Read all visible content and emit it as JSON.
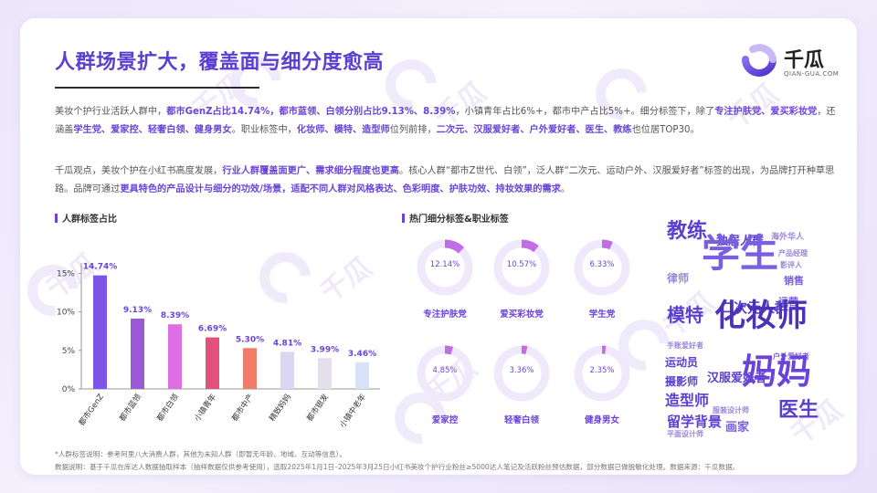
{
  "title": "人群场景扩大，覆盖面与细分度愈高",
  "logo": {
    "name": "千瓜",
    "sub": "QIAN-GUA.COM",
    "watermark_sub": "QIAN-GUA.COM"
  },
  "paragraph1": {
    "t1": "美妆个护行业活跃人群中，",
    "h1": "都市GenZ占比14.74%，都市蓝领、白领分别占比9.13%、8.39%",
    "t2": "，小镇青年占比6%+，都市中产占比5%+。细分标签下，除了",
    "h2": "专注护肤党、爱买彩妆党",
    "t3": "，还涵盖",
    "h3": "学生党、爱家控、轻奢白领、健身男女",
    "t4": "。职业标签中，",
    "h4": "化妆师、模特、造型师",
    "t5": "位列前排，",
    "h5": "二次元、汉服爱好者、户外爱好者、医生、教练",
    "t6": "也位居TOP30。"
  },
  "paragraph2": {
    "t1": "千瓜观点，美妆个护在小红书高度发展，",
    "h1": "行业人群覆盖面更广、需求细分程度也更高",
    "t2": "。核心人群“都市Z世代、白领”，泛人群“二次元、运动户外、汉服爱好者”标签的出现，为品牌打开种草思路。品牌可通过",
    "h2": "更具特色的产品设计与细分的功效/场景，适配不同人群对风格表达、色彩明度、护肤功效、持妆效果的需求",
    "t3": "。"
  },
  "left_section_title": "人群标签占比",
  "mid_section_title": "热门细分标签&职业标签",
  "chart_data": [
    {
      "type": "bar",
      "title": "人群标签占比",
      "categories": [
        "都市GenZ",
        "都市蓝领",
        "都市白领",
        "小镇青年",
        "都市中产",
        "精致妈妈",
        "都市银发",
        "小镇中老年"
      ],
      "values": [
        14.74,
        9.13,
        8.39,
        6.69,
        5.3,
        4.81,
        3.99,
        3.46
      ],
      "value_labels": [
        "14.74%",
        "9.13%",
        "8.39%",
        "6.69%",
        "5.30%",
        "4.81%",
        "3.99%",
        "3.46%"
      ],
      "colors": [
        "#7a55e8",
        "#9a5ad6",
        "#dd6fe3",
        "#e2507c",
        "#f07d6a",
        "#dcd6f5",
        "#e3e0ec",
        "#d7e2f6"
      ],
      "yticks": [
        "0%",
        "5%",
        "10%",
        "15%"
      ],
      "ytick_values": [
        0,
        5,
        10,
        15
      ],
      "ylim": [
        0,
        16
      ],
      "grid": false
    },
    {
      "type": "pie",
      "title": "热门细分标签&职业标签",
      "items": [
        {
          "label": "专注护肤党",
          "value": 12.14,
          "text": "12.14%"
        },
        {
          "label": "爱买彩妆党",
          "value": 10.57,
          "text": "10.57%"
        },
        {
          "label": "学生党",
          "value": 6.33,
          "text": "6.33%"
        },
        {
          "label": "爱家控",
          "value": 4.85,
          "text": "4.85%"
        },
        {
          "label": "轻奢白领",
          "value": 3.36,
          "text": "3.36%"
        },
        {
          "label": "健身男女",
          "value": 2.35,
          "text": "2.35%"
        }
      ],
      "colors": {
        "ring": "#f0e9fb",
        "fill": "#c16ee6"
      }
    }
  ],
  "word_cloud": [
    {
      "text": "教练",
      "color": "#5a3fd1"
    },
    {
      "text": "独居人群",
      "color": "#5a3fd1"
    },
    {
      "text": "海外华人",
      "color": "#9a86d8"
    },
    {
      "text": "产品经理",
      "color": "#9a86d8"
    },
    {
      "text": "影评人",
      "color": "#9a86d8"
    },
    {
      "text": "学生",
      "color": "#7a5fe0"
    },
    {
      "text": "销售",
      "color": "#7a5fe0"
    },
    {
      "text": "律师",
      "color": "#9a86d8"
    },
    {
      "text": "运营",
      "color": "#7a5fe0"
    },
    {
      "text": "二次元人群",
      "color": "#5a3fd1"
    },
    {
      "text": "模特",
      "color": "#5a3fd1"
    },
    {
      "text": "化妆师",
      "color": "#4b33b8"
    },
    {
      "text": "手账爱好者",
      "color": "#9a86d8"
    },
    {
      "text": "户外爱好者",
      "color": "#7a5fe0"
    },
    {
      "text": "运动员",
      "color": "#5a3fd1"
    },
    {
      "text": "摄影师",
      "color": "#5a3fd1"
    },
    {
      "text": "汉服爱好者",
      "color": "#5a3fd1"
    },
    {
      "text": "妈妈",
      "color": "#6a44d8"
    },
    {
      "text": "造型师",
      "color": "#5a3fd1"
    },
    {
      "text": "服装设计师",
      "color": "#9a86d8"
    },
    {
      "text": "留学背景",
      "color": "#5a3fd1"
    },
    {
      "text": "平面设计师",
      "color": "#9a86d8"
    },
    {
      "text": "画家",
      "color": "#7a5fe0"
    },
    {
      "text": "医生",
      "color": "#5a3fd1"
    }
  ],
  "footnote": "*人群标签说明：参考阿里八大消费人群，其他为未知人群（即暂无年龄、地域、互动等信息）。",
  "source": "数据说明：基于千瓜在库达人数据抽取样本（抽样数据仅供参考使用），选取2025年1月1日–2025年3月25日小红书美妆个护行业粉丝≥5000达人笔记及活跃粉丝预估数据，部分数据已做脱敏化处理。数据来源：千瓜数据。"
}
